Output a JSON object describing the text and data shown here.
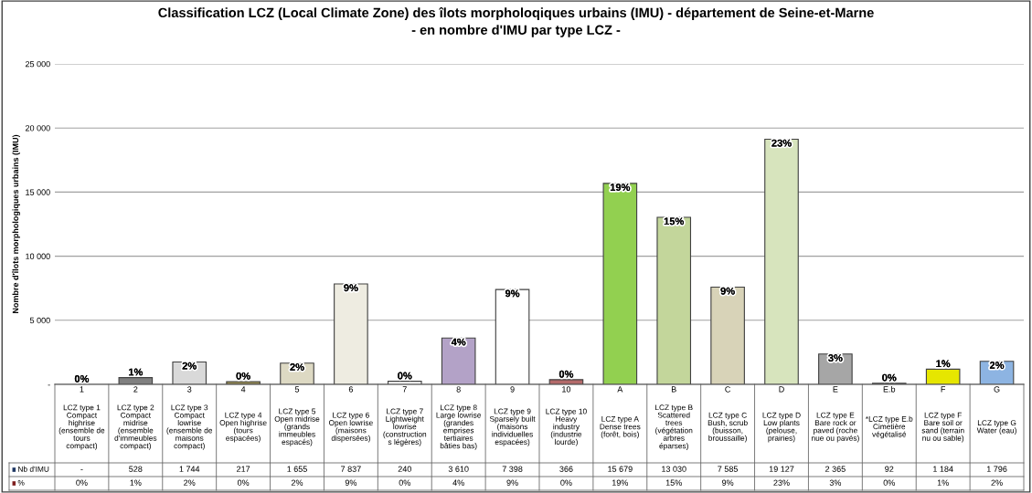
{
  "chart_data": {
    "type": "bar",
    "title": "Classification LCZ (Local Climate Zone) des îlots morpholoqiques urbains (IMU) - département de Seine-et-Marne\n- en nombre d'IMU par type LCZ -",
    "ylabel": "Nombre d'îlots morphologiques urbains (IMU)",
    "categories": [
      "1\nLCZ type 1\nCompact\nhighrise\n(ensemble de\ntours\ncompact)",
      "2\nLCZ type 2\nCompact\nmidrise\n(ensemble\nd'immeubles\ncompact)",
      "3\nLCZ type 3\nCompact\nlowrise\n(ensemble de\nmaisons\ncompact)",
      "4\nLCZ type 4\nOpen highrise\n(tours\nespacées)",
      "5\nLCZ type 5\nOpen midrise\n(grands\nimmeubles\nespacés)",
      "6\nLCZ type 6\nOpen lowrise\n(maisons\ndispersées)",
      "7\nLCZ type 7\nLightweight\nlowrise\n(construction\ns légères)",
      "8\nLCZ type 8\nLarge lowrise\n(grandes\nemprises\ntertiaires\nbâties bas)",
      "9\nLCZ type 9\nSparsely built\n(maisons\nindividuelles\nespacées)",
      "10\nLCZ type 10\nHeavy\nindustry\n(industrie\nlourde)",
      "A\nLCZ type A\nDense trees\n(forêt, bois)",
      "B\nLCZ type B\nScattered\ntrees\n(végétation\narbres\néparses)",
      "C\nLCZ type C\nBush, scrub\n(buisson,\nbroussaille)",
      "D\nLCZ type D\nLow plants\n(pelouse,\nprairies)",
      "E\nLCZ type E\nBare rock or\npaved (roche\nnue ou pavés)",
      "E.b\n*LCZ type E.b\nCimetière\nvégétalisé",
      "F\nLCZ type F\nBare soil or\nsand (terrain\nnu ou sable)",
      "G\nLCZ type G\nWater (eau)"
    ],
    "series": [
      {
        "name": "Nb d'IMU",
        "color": "#1f3864",
        "values": [
          0,
          528,
          1744,
          217,
          1655,
          7837,
          240,
          3610,
          7398,
          366,
          15679,
          13030,
          7585,
          19127,
          2365,
          92,
          1184,
          1796
        ],
        "colors": [
          "#ffffff",
          "#808080",
          "#d9d9d9",
          "#948a54",
          "#ddd9c3",
          "#eeece1",
          "#ffffff",
          "#b3a2c7",
          "#ffffff",
          "#b36a6a",
          "#92d050",
          "#c3d69b",
          "#d8d3b8",
          "#d7e4bd",
          "#a6a6a6",
          "#7f7f7f",
          "#e6e600",
          "#8db4e2"
        ],
        "value_labels": [
          "-",
          "528",
          "1 744",
          "217",
          "1 655",
          "7 837",
          "240",
          "3 610",
          "7 398",
          "366",
          "15 679",
          "13 030",
          "7 585",
          "19 127",
          "2 365",
          "92",
          "1 184",
          "1 796"
        ]
      }
    ],
    "annotations": [
      "%",
      "0%",
      "1%",
      "2%",
      "0%",
      "2%",
      "9%",
      "0%",
      "4%",
      "9%",
      "0%",
      "19%",
      "15%",
      "9%",
      "23%",
      "3%",
      "0%",
      "1%",
      "2%"
    ],
    "ylim": [
      0,
      25000
    ],
    "yticks": [
      {
        "value": 0,
        "label": "-"
      },
      {
        "value": 5000,
        "label": "5 000"
      },
      {
        "value": 10000,
        "label": "10 000"
      },
      {
        "value": 15000,
        "label": "15 000"
      },
      {
        "value": 20000,
        "label": "20 000"
      },
      {
        "value": 25000,
        "label": "25 000"
      }
    ],
    "grid": "y"
  }
}
